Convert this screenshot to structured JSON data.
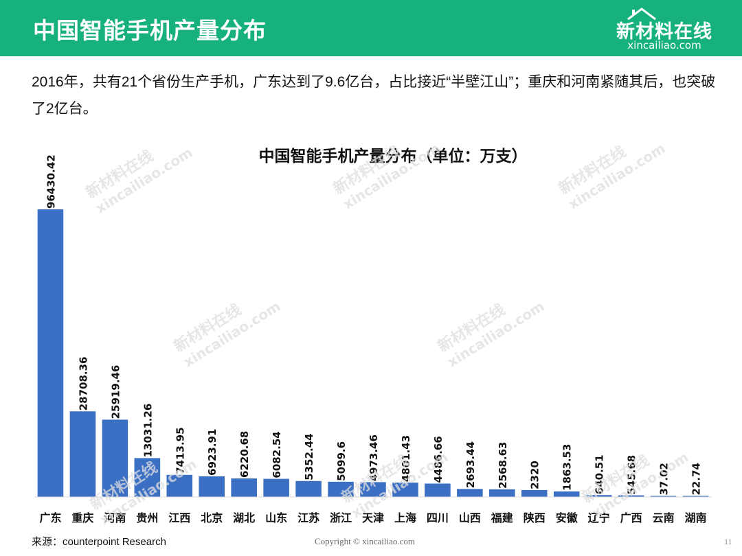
{
  "header": {
    "title": "中国智能手机产量分布",
    "logo_text": "新材料在线",
    "logo_domain": "xincailiao.com",
    "background_color": "#17b07f"
  },
  "intro": "2016年，共有21个省份生产手机，广东达到了9.6亿台，占比接近“半壁江山”；重庆和河南紧随其后，也突破了2亿台。",
  "chart_data": {
    "type": "bar",
    "title": "中国智能手机产量分布（单位：万支）",
    "categories": [
      "广东",
      "重庆",
      "河南",
      "贵州",
      "江西",
      "北京",
      "湖北",
      "山东",
      "江苏",
      "浙江",
      "天津",
      "上海",
      "四川",
      "山西",
      "福建",
      "陕西",
      "安徽",
      "辽宁",
      "广西",
      "云南",
      "湖南"
    ],
    "values": [
      96430.42,
      28708.36,
      25919.46,
      13031.26,
      7413.95,
      6923.91,
      6220.68,
      6082.54,
      5352.44,
      5099.6,
      4973.46,
      4801.43,
      4486.66,
      2693.44,
      2568.63,
      2320,
      1863.53,
      640.51,
      545.68,
      37.02,
      22.74
    ],
    "value_labels": [
      "96430.42",
      "28708.36",
      "25919.46",
      "13031.26",
      "7413.95",
      "6923.91",
      "6220.68",
      "6082.54",
      "5352.44",
      "5099.6",
      "4973.46",
      "4801.43",
      "4486.66",
      "2693.44",
      "2568.63",
      "2320",
      "1863.53",
      "640.51",
      "545.68",
      "37.02",
      "22.74"
    ],
    "ylim": [
      0,
      100000
    ],
    "bar_color": "#3a6fc4",
    "grid": false,
    "legend": "none"
  },
  "footer": {
    "source": "来源：counterpoint Research",
    "copyright": "Copyright © xincailiao.com",
    "page_number": "11"
  },
  "watermark": {
    "cn": "新材料在线",
    "en": "xincailiao.com"
  }
}
